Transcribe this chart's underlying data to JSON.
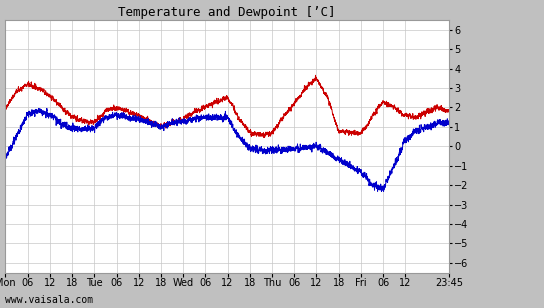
{
  "title": "Temperature and Dewpoint [’C]",
  "ylim": [
    -6.5,
    6.5
  ],
  "yticks": [
    -6,
    -5,
    -4,
    -3,
    -2,
    -1,
    0,
    1,
    2,
    3,
    4,
    5,
    6
  ],
  "temp_color": "#cc0000",
  "dew_color": "#0000cc",
  "bg_color": "#ffffff",
  "fig_color": "#c0c0c0",
  "grid_color": "#c8c8c8",
  "footer_text": "www.vaisala.com",
  "title_fontsize": 9,
  "tick_fontsize": 7,
  "footer_fontsize": 7,
  "line_width": 0.7,
  "x_tick_labels": [
    "Mon",
    "06",
    "12",
    "18",
    "Tue",
    "06",
    "12",
    "18",
    "Wed",
    "06",
    "12",
    "18",
    "Thu",
    "06",
    "12",
    "18",
    "Fri",
    "06",
    "12",
    "23:45"
  ],
  "x_tick_positions": [
    0,
    6,
    12,
    18,
    24,
    30,
    36,
    42,
    48,
    54,
    60,
    66,
    72,
    78,
    84,
    90,
    96,
    102,
    108,
    119.75
  ],
  "xlim": [
    0,
    119.75
  ]
}
